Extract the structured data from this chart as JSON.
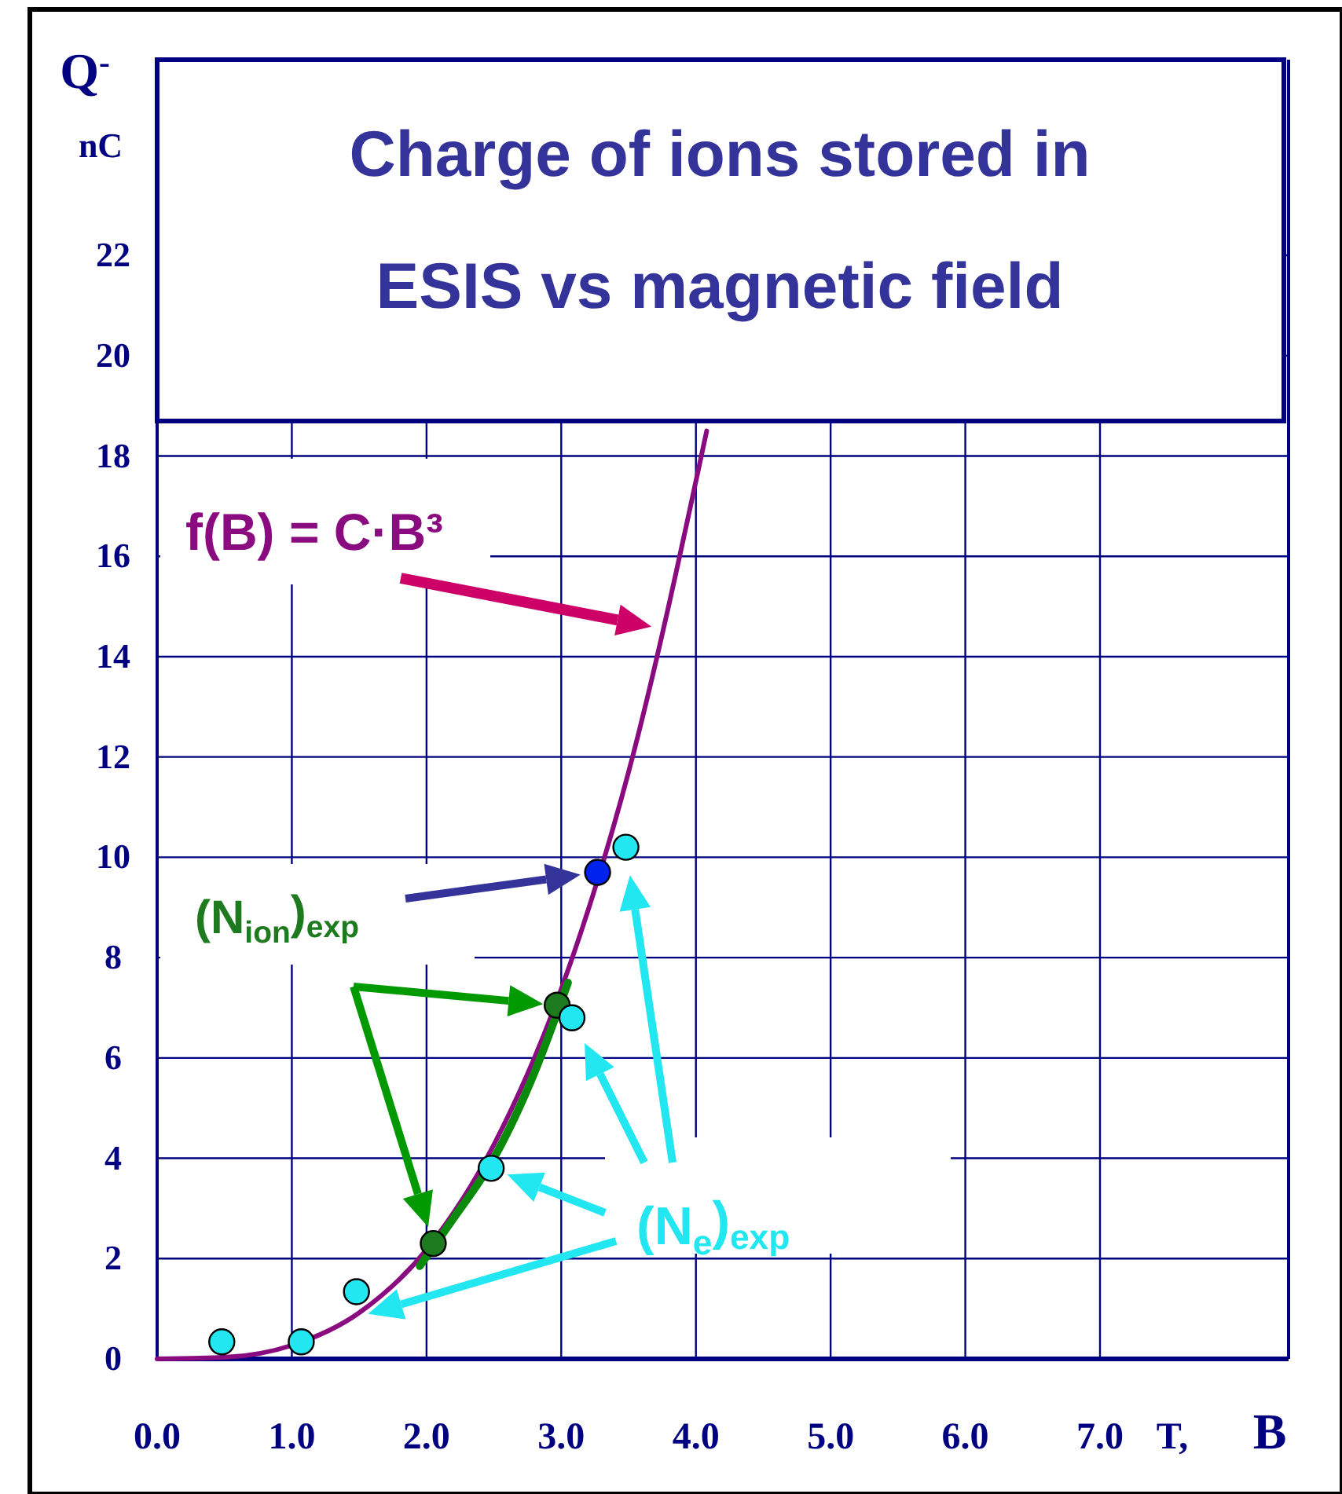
{
  "chart_data": {
    "type": "scatter",
    "title": "Charge of ions stored in ESIS vs magnetic field",
    "xlabel": "T,  B",
    "ylabel": "Q$^{-}$ nC",
    "xlim": [
      0,
      8.4
    ],
    "ylim": [
      0,
      25.9
    ],
    "xticks": [
      {
        "value": 0,
        "label": "0.0"
      },
      {
        "value": 1,
        "label": "1.0"
      },
      {
        "value": 2,
        "label": "2.0"
      },
      {
        "value": 3,
        "label": "3.0"
      },
      {
        "value": 4,
        "label": "4.0"
      },
      {
        "value": 5,
        "label": "5.0"
      },
      {
        "value": 6,
        "label": "6.0"
      },
      {
        "value": 7,
        "label": "7.0"
      }
    ],
    "yticks": [
      0,
      2,
      4,
      6,
      8,
      10,
      12,
      14,
      16,
      18,
      20,
      22
    ],
    "grid": true,
    "series": [
      {
        "type": "line",
        "name": "f(B) = C·B³",
        "color": "#8a0a80",
        "marker": "none",
        "x": [
          0,
          0.5,
          1,
          1.5,
          2,
          2.5,
          3,
          3.5,
          4.08
        ],
        "values": [
          0,
          0.03,
          0.27,
          0.92,
          2.18,
          4.27,
          7.37,
          11.7,
          18.5
        ]
      },
      {
        "type": "line",
        "color": "#0a8a0a",
        "marker": "none",
        "x": [
          1.95,
          2.2,
          2.5,
          2.8,
          3.05
        ],
        "values": [
          1.85,
          2.8,
          4.0,
          5.7,
          7.5
        ]
      },
      {
        "name": "(N$_{ion}$)$_{exp}$",
        "color": "#1e7a1e",
        "colors": [
          "#1e7a1e",
          "#1e7a1e",
          "#0022ee"
        ],
        "marker": "circle",
        "x": [
          2.05,
          2.97,
          3.27
        ],
        "values": [
          2.3,
          7.05,
          9.7
        ]
      },
      {
        "name": "(N$_{e}$)$_{exp}$",
        "color": "#22e6f0",
        "marker": "circle",
        "x": [
          0.48,
          1.07,
          1.48,
          2.48,
          3.08,
          3.48
        ],
        "values": [
          0.34,
          0.34,
          1.34,
          3.8,
          6.8,
          10.2
        ]
      }
    ]
  }
}
